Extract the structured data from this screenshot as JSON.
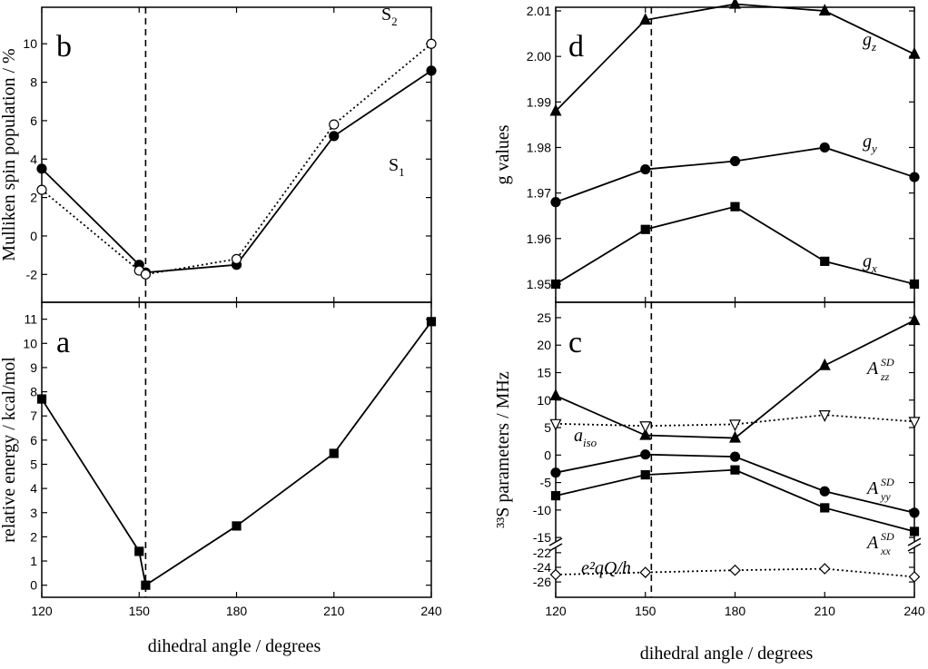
{
  "chart_data": [
    {
      "type": "line",
      "panel_label": "b",
      "ylabel": "Mulliken spin population / %",
      "xlim": [
        120,
        240
      ],
      "xticks": [
        120,
        150,
        180,
        210,
        240
      ],
      "ylim": [
        -3.45,
        11.9
      ],
      "yticks": [
        -2,
        0,
        2,
        4,
        6,
        8,
        10
      ],
      "vline": 152,
      "series": [
        {
          "label": [
            "S",
            "1"
          ],
          "x": [
            120,
            150,
            152,
            180,
            210,
            240
          ],
          "values": [
            3.5,
            -1.5,
            -1.9,
            -1.5,
            5.2,
            8.6
          ],
          "marker": "circle",
          "filled": true,
          "dash": "solid",
          "color": "#000000"
        },
        {
          "label": [
            "S",
            "2"
          ],
          "x": [
            120,
            150,
            152,
            180,
            210,
            240
          ],
          "values": [
            2.4,
            -1.8,
            -2.0,
            -1.2,
            5.8,
            10.0
          ],
          "marker": "circle",
          "filled": false,
          "dash": "dotted",
          "color": "#000000"
        }
      ]
    },
    {
      "type": "line",
      "panel_label": "a",
      "ylabel": "relative energy / kcal/mol",
      "xlabel": "dihedral angle / degrees",
      "xlim": [
        120,
        240
      ],
      "xticks": [
        120,
        150,
        180,
        210,
        240
      ],
      "ylim": [
        -0.5,
        11.7
      ],
      "yticks": [
        0,
        1,
        2,
        3,
        4,
        5,
        6,
        7,
        8,
        9,
        10,
        11
      ],
      "vline": 152,
      "series": [
        {
          "x": [
            120,
            150,
            152,
            180,
            210,
            240
          ],
          "values": [
            7.7,
            1.4,
            0,
            2.45,
            5.45,
            10.9
          ],
          "marker": "square",
          "filled": true,
          "dash": "solid",
          "color": "#000000"
        }
      ]
    },
    {
      "type": "line",
      "panel_label": "d",
      "ylabel": "g values",
      "xlim": [
        120,
        240
      ],
      "xticks": [
        120,
        150,
        180,
        210,
        240
      ],
      "ylim": [
        1.946,
        2.0108
      ],
      "yticks": [
        1.95,
        1.96,
        1.97,
        1.98,
        1.99,
        {
          "value": 2.0,
          "label": "2.00"
        },
        2.01
      ],
      "vline": 152,
      "series": [
        {
          "label": [
            "g",
            "z"
          ],
          "x": [
            120,
            150,
            180,
            210,
            240
          ],
          "values": [
            1.988,
            2.008,
            2.0115,
            2.01,
            2.0005
          ],
          "marker": "triangle-up",
          "filled": true,
          "dash": "solid",
          "color": "#000000"
        },
        {
          "label": [
            "g",
            "y"
          ],
          "x": [
            120,
            150,
            180,
            210,
            240
          ],
          "values": [
            1.968,
            1.9752,
            1.977,
            1.98,
            1.9735
          ],
          "marker": "circle",
          "filled": true,
          "dash": "solid",
          "color": "#000000"
        },
        {
          "label": [
            "g",
            "x"
          ],
          "x": [
            120,
            150,
            180,
            210,
            240
          ],
          "values": [
            1.95,
            1.962,
            1.967,
            1.955,
            1.95
          ],
          "marker": "square",
          "filled": true,
          "dash": "solid",
          "color": "#000000"
        }
      ]
    },
    {
      "type": "line",
      "panel_label": "c",
      "ylabel": "³³S parameters / MHz",
      "xlabel": "dihedral angle / degrees",
      "xlim": [
        120,
        240
      ],
      "xticks": [
        120,
        150,
        180,
        210,
        240
      ],
      "ylim": [
        -16.3,
        27.8
      ],
      "yticks": [
        -15,
        -10,
        -5,
        0,
        5,
        10,
        15,
        20,
        25
      ],
      "ylim_lower": [
        -28.1,
        -20.9
      ],
      "yticks_lower": [
        -26,
        -24,
        -22
      ],
      "vline": 152,
      "series": [
        {
          "label": [
            "A",
            "SD",
            "zz"
          ],
          "x": [
            120,
            150,
            180,
            210,
            240
          ],
          "values": [
            10.8,
            3.6,
            3.1,
            16.3,
            24.5
          ],
          "marker": "triangle-up",
          "filled": true,
          "dash": "solid",
          "color": "#000000"
        },
        {
          "label": [
            "a",
            "iso"
          ],
          "x": [
            120,
            150,
            180,
            210,
            240
          ],
          "values": [
            5.7,
            5.3,
            5.6,
            7.3,
            6.1
          ],
          "marker": "triangle-down",
          "filled": false,
          "dash": "dotted",
          "color": "#000000"
        },
        {
          "label": [
            "A",
            "SD",
            "yy"
          ],
          "x": [
            120,
            150,
            180,
            210,
            240
          ],
          "values": [
            -3.2,
            0.1,
            -0.3,
            -6.6,
            -10.5
          ],
          "marker": "circle",
          "filled": true,
          "dash": "solid",
          "color": "#000000"
        },
        {
          "label": [
            "A",
            "SD",
            "xx"
          ],
          "x": [
            120,
            150,
            180,
            210,
            240
          ],
          "values": [
            -7.4,
            -3.6,
            -2.7,
            -9.6,
            -13.9
          ],
          "marker": "square",
          "filled": true,
          "dash": "solid",
          "color": "#000000"
        },
        {
          "label": [
            "e²qQ/h"
          ],
          "axis": "lower",
          "x": [
            120,
            150,
            180,
            210,
            240
          ],
          "values": [
            -25.0,
            -24.7,
            -24.4,
            -24.2,
            -25.3
          ],
          "marker": "diamond",
          "filled": false,
          "dash": "dotted",
          "color": "#000000"
        }
      ]
    }
  ]
}
